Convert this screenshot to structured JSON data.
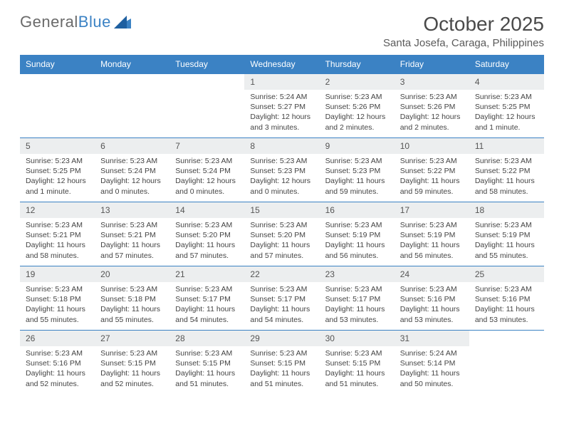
{
  "logo": {
    "text1": "General",
    "text2": "Blue"
  },
  "title": "October 2025",
  "location": "Santa Josefa, Caraga, Philippines",
  "colors": {
    "header_bg": "#3b82c4",
    "header_text": "#ffffff",
    "daynum_bg": "#eceeef",
    "row_border": "#3b82c4",
    "body_text": "#444444"
  },
  "day_names": [
    "Sunday",
    "Monday",
    "Tuesday",
    "Wednesday",
    "Thursday",
    "Friday",
    "Saturday"
  ],
  "weeks": [
    [
      {
        "n": "",
        "sr": "",
        "ss": "",
        "dl": ""
      },
      {
        "n": "",
        "sr": "",
        "ss": "",
        "dl": ""
      },
      {
        "n": "",
        "sr": "",
        "ss": "",
        "dl": ""
      },
      {
        "n": "1",
        "sr": "Sunrise: 5:24 AM",
        "ss": "Sunset: 5:27 PM",
        "dl": "Daylight: 12 hours and 3 minutes."
      },
      {
        "n": "2",
        "sr": "Sunrise: 5:23 AM",
        "ss": "Sunset: 5:26 PM",
        "dl": "Daylight: 12 hours and 2 minutes."
      },
      {
        "n": "3",
        "sr": "Sunrise: 5:23 AM",
        "ss": "Sunset: 5:26 PM",
        "dl": "Daylight: 12 hours and 2 minutes."
      },
      {
        "n": "4",
        "sr": "Sunrise: 5:23 AM",
        "ss": "Sunset: 5:25 PM",
        "dl": "Daylight: 12 hours and 1 minute."
      }
    ],
    [
      {
        "n": "5",
        "sr": "Sunrise: 5:23 AM",
        "ss": "Sunset: 5:25 PM",
        "dl": "Daylight: 12 hours and 1 minute."
      },
      {
        "n": "6",
        "sr": "Sunrise: 5:23 AM",
        "ss": "Sunset: 5:24 PM",
        "dl": "Daylight: 12 hours and 0 minutes."
      },
      {
        "n": "7",
        "sr": "Sunrise: 5:23 AM",
        "ss": "Sunset: 5:24 PM",
        "dl": "Daylight: 12 hours and 0 minutes."
      },
      {
        "n": "8",
        "sr": "Sunrise: 5:23 AM",
        "ss": "Sunset: 5:23 PM",
        "dl": "Daylight: 12 hours and 0 minutes."
      },
      {
        "n": "9",
        "sr": "Sunrise: 5:23 AM",
        "ss": "Sunset: 5:23 PM",
        "dl": "Daylight: 11 hours and 59 minutes."
      },
      {
        "n": "10",
        "sr": "Sunrise: 5:23 AM",
        "ss": "Sunset: 5:22 PM",
        "dl": "Daylight: 11 hours and 59 minutes."
      },
      {
        "n": "11",
        "sr": "Sunrise: 5:23 AM",
        "ss": "Sunset: 5:22 PM",
        "dl": "Daylight: 11 hours and 58 minutes."
      }
    ],
    [
      {
        "n": "12",
        "sr": "Sunrise: 5:23 AM",
        "ss": "Sunset: 5:21 PM",
        "dl": "Daylight: 11 hours and 58 minutes."
      },
      {
        "n": "13",
        "sr": "Sunrise: 5:23 AM",
        "ss": "Sunset: 5:21 PM",
        "dl": "Daylight: 11 hours and 57 minutes."
      },
      {
        "n": "14",
        "sr": "Sunrise: 5:23 AM",
        "ss": "Sunset: 5:20 PM",
        "dl": "Daylight: 11 hours and 57 minutes."
      },
      {
        "n": "15",
        "sr": "Sunrise: 5:23 AM",
        "ss": "Sunset: 5:20 PM",
        "dl": "Daylight: 11 hours and 57 minutes."
      },
      {
        "n": "16",
        "sr": "Sunrise: 5:23 AM",
        "ss": "Sunset: 5:19 PM",
        "dl": "Daylight: 11 hours and 56 minutes."
      },
      {
        "n": "17",
        "sr": "Sunrise: 5:23 AM",
        "ss": "Sunset: 5:19 PM",
        "dl": "Daylight: 11 hours and 56 minutes."
      },
      {
        "n": "18",
        "sr": "Sunrise: 5:23 AM",
        "ss": "Sunset: 5:19 PM",
        "dl": "Daylight: 11 hours and 55 minutes."
      }
    ],
    [
      {
        "n": "19",
        "sr": "Sunrise: 5:23 AM",
        "ss": "Sunset: 5:18 PM",
        "dl": "Daylight: 11 hours and 55 minutes."
      },
      {
        "n": "20",
        "sr": "Sunrise: 5:23 AM",
        "ss": "Sunset: 5:18 PM",
        "dl": "Daylight: 11 hours and 55 minutes."
      },
      {
        "n": "21",
        "sr": "Sunrise: 5:23 AM",
        "ss": "Sunset: 5:17 PM",
        "dl": "Daylight: 11 hours and 54 minutes."
      },
      {
        "n": "22",
        "sr": "Sunrise: 5:23 AM",
        "ss": "Sunset: 5:17 PM",
        "dl": "Daylight: 11 hours and 54 minutes."
      },
      {
        "n": "23",
        "sr": "Sunrise: 5:23 AM",
        "ss": "Sunset: 5:17 PM",
        "dl": "Daylight: 11 hours and 53 minutes."
      },
      {
        "n": "24",
        "sr": "Sunrise: 5:23 AM",
        "ss": "Sunset: 5:16 PM",
        "dl": "Daylight: 11 hours and 53 minutes."
      },
      {
        "n": "25",
        "sr": "Sunrise: 5:23 AM",
        "ss": "Sunset: 5:16 PM",
        "dl": "Daylight: 11 hours and 53 minutes."
      }
    ],
    [
      {
        "n": "26",
        "sr": "Sunrise: 5:23 AM",
        "ss": "Sunset: 5:16 PM",
        "dl": "Daylight: 11 hours and 52 minutes."
      },
      {
        "n": "27",
        "sr": "Sunrise: 5:23 AM",
        "ss": "Sunset: 5:15 PM",
        "dl": "Daylight: 11 hours and 52 minutes."
      },
      {
        "n": "28",
        "sr": "Sunrise: 5:23 AM",
        "ss": "Sunset: 5:15 PM",
        "dl": "Daylight: 11 hours and 51 minutes."
      },
      {
        "n": "29",
        "sr": "Sunrise: 5:23 AM",
        "ss": "Sunset: 5:15 PM",
        "dl": "Daylight: 11 hours and 51 minutes."
      },
      {
        "n": "30",
        "sr": "Sunrise: 5:23 AM",
        "ss": "Sunset: 5:15 PM",
        "dl": "Daylight: 11 hours and 51 minutes."
      },
      {
        "n": "31",
        "sr": "Sunrise: 5:24 AM",
        "ss": "Sunset: 5:14 PM",
        "dl": "Daylight: 11 hours and 50 minutes."
      },
      {
        "n": "",
        "sr": "",
        "ss": "",
        "dl": ""
      }
    ]
  ]
}
